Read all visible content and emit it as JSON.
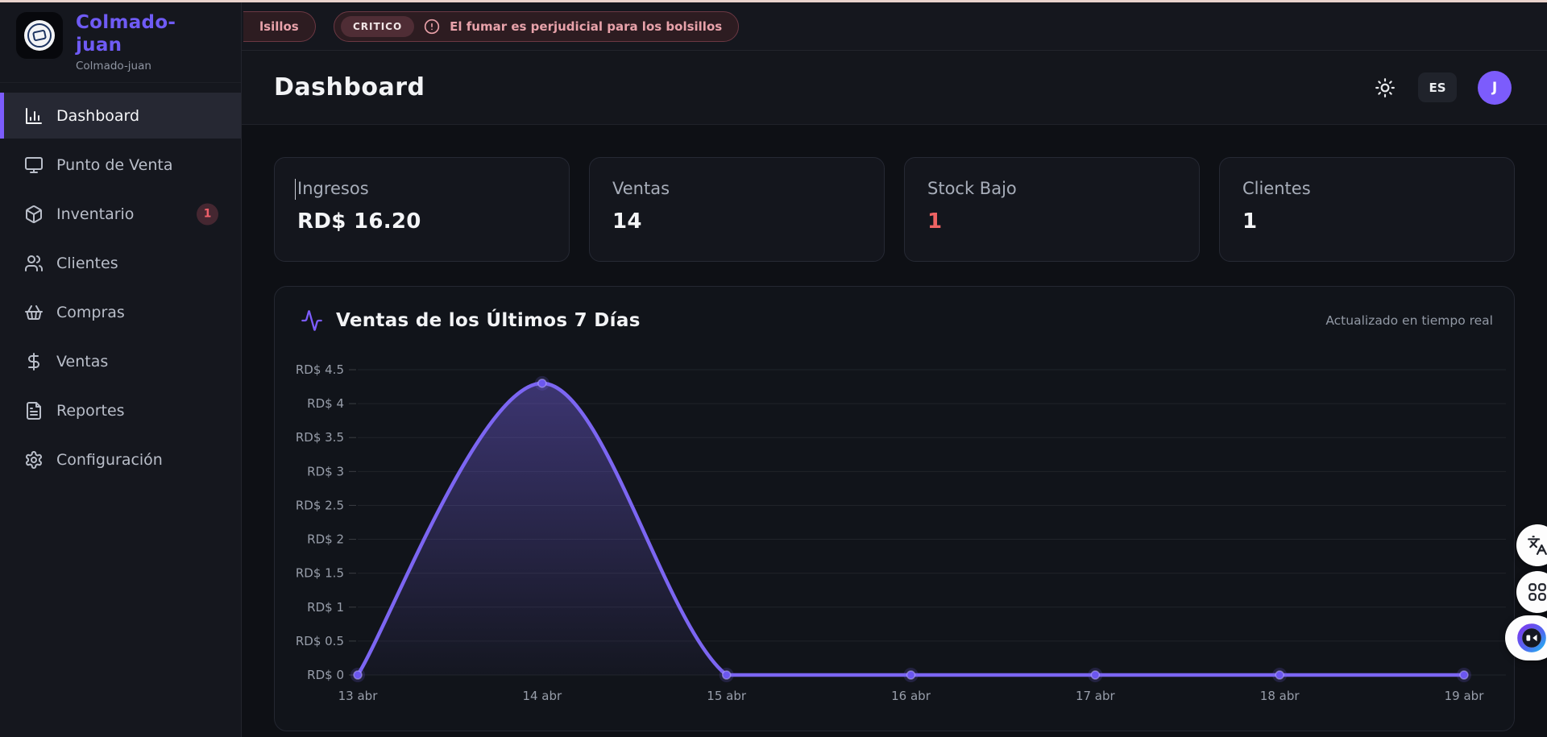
{
  "colors": {
    "accent_purple": "#7c5cfc",
    "brand_text": "#6f5bf5",
    "alert_pink": "#e8a2aa",
    "danger_red": "#ef6363",
    "top_strip": "#e9d3cc"
  },
  "sidebar": {
    "brand": {
      "title": "Colmado-juan",
      "subtitle": "Colmado-juan"
    },
    "items": [
      {
        "label": "Dashboard",
        "icon": "bar-chart",
        "active": true
      },
      {
        "label": "Punto de Venta",
        "icon": "monitor",
        "active": false
      },
      {
        "label": "Inventario",
        "icon": "package",
        "active": false,
        "badge": "1"
      },
      {
        "label": "Clientes",
        "icon": "users",
        "active": false
      },
      {
        "label": "Compras",
        "icon": "basket",
        "active": false
      },
      {
        "label": "Ventas",
        "icon": "dollar",
        "active": false
      },
      {
        "label": "Reportes",
        "icon": "document",
        "active": false
      },
      {
        "label": "Configuración",
        "icon": "gear",
        "active": false
      }
    ]
  },
  "ticker": {
    "partial_text": "lsillos",
    "alert": {
      "level": "CRITICO",
      "message": "El fumar es perjudicial para los bolsillos"
    }
  },
  "header": {
    "title": "Dashboard",
    "language": "ES",
    "avatar_initial": "J"
  },
  "stats": [
    {
      "label": "Ingresos",
      "value": "RD$ 16.20",
      "danger": false
    },
    {
      "label": "Ventas",
      "value": "14",
      "danger": false
    },
    {
      "label": "Stock Bajo",
      "value": "1",
      "danger": true
    },
    {
      "label": "Clientes",
      "value": "1",
      "danger": false
    }
  ],
  "chart_card": {
    "title": "Ventas de los Últimos 7 Días",
    "status": "Actualizado en tiempo real"
  },
  "chart_data": {
    "type": "area",
    "title": "Ventas de los Últimos 7 Días",
    "x": [
      "13 abr",
      "14 abr",
      "15 abr",
      "16 abr",
      "17 abr",
      "18 abr",
      "19 abr"
    ],
    "series": [
      {
        "name": "Ventas",
        "values": [
          0,
          4.3,
          0,
          0,
          0,
          0,
          0
        ]
      }
    ],
    "ylim": [
      0,
      4.5
    ],
    "y_ticks": [
      {
        "label": "RD$ 4.5",
        "value": 4.5
      },
      {
        "label": "RD$ 4",
        "value": 4.0
      },
      {
        "label": "RD$ 3.5",
        "value": 3.5
      },
      {
        "label": "RD$ 3",
        "value": 3.0
      },
      {
        "label": "RD$ 2.5",
        "value": 2.5
      },
      {
        "label": "RD$ 2",
        "value": 2.0
      },
      {
        "label": "RD$ 1.5",
        "value": 1.5
      },
      {
        "label": "RD$ 1",
        "value": 1.0
      },
      {
        "label": "RD$ 0.5",
        "value": 0.5
      },
      {
        "label": "RD$ 0",
        "value": 0.0
      }
    ],
    "grid": true,
    "legend": false,
    "currency_prefix": "RD$",
    "line_color": "#7c66f2",
    "marker_color": "#6c57ef",
    "fill_color_top": "rgba(124,102,242,0.40)",
    "fill_color_bottom": "rgba(124,102,242,0.03)"
  },
  "floating_buttons": [
    {
      "icon": "translate"
    },
    {
      "icon": "apps-grid"
    },
    {
      "icon": "chatbot"
    }
  ]
}
